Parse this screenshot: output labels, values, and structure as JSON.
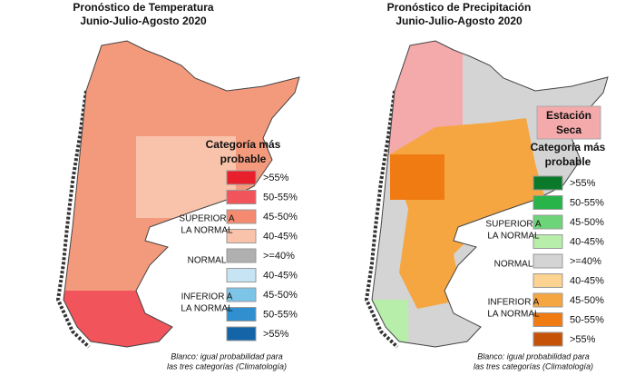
{
  "maps": [
    {
      "title": [
        "Pronóstico de Temperatura",
        "Junio-Julio-Agosto 2020"
      ],
      "legend_title": [
        "Categoría más",
        "probable"
      ],
      "groups": [
        {
          "lines": [
            "SUPERIOR A",
            "LA NORMAL"
          ]
        },
        {
          "lines": [
            "NORMAL"
          ]
        },
        {
          "lines": [
            "INFERIOR A",
            "LA NORMAL"
          ]
        }
      ],
      "legend": [
        {
          "label": ">55%",
          "color": "#e8202b"
        },
        {
          "label": "50-55%",
          "color": "#f2545c"
        },
        {
          "label": "45-50%",
          "color": "#f48a70"
        },
        {
          "label": "40-45%",
          "color": "#f9c2aa"
        },
        {
          "label": ">=40%",
          "color": "#b0b0b0"
        },
        {
          "label": "40-45%",
          "color": "#c6e4f4"
        },
        {
          "label": "45-50%",
          "color": "#7cc4e8"
        },
        {
          "label": "50-55%",
          "color": "#2f8fcf"
        },
        {
          "label": ">55%",
          "color": "#1464a8"
        }
      ],
      "footnote": [
        "Blanco: igual probabilidad para",
        "las tres categorías (Climatología)"
      ]
    },
    {
      "title": [
        "Pronóstico de Precipitación",
        "Junio-Julio-Agosto 2020"
      ],
      "badge": [
        "Estación",
        "Seca"
      ],
      "legend_title": [
        "Categoría más",
        "probable"
      ],
      "groups": [
        {
          "lines": [
            "SUPERIOR A",
            "LA NORMAL"
          ]
        },
        {
          "lines": [
            "NORMAL"
          ]
        },
        {
          "lines": [
            "INFERIOR A",
            "LA NORMAL"
          ]
        }
      ],
      "legend": [
        {
          "label": ">55%",
          "color": "#0a7a2a"
        },
        {
          "label": "50-55%",
          "color": "#29b44a"
        },
        {
          "label": "45-50%",
          "color": "#6ed47a"
        },
        {
          "label": "40-45%",
          "color": "#b6eeaa"
        },
        {
          "label": ">=40%",
          "color": "#d4d4d4"
        },
        {
          "label": "40-45%",
          "color": "#fcd390"
        },
        {
          "label": "45-50%",
          "color": "#f6a640"
        },
        {
          "label": "50-55%",
          "color": "#ef7b12"
        },
        {
          "label": ">55%",
          "color": "#c65208"
        }
      ],
      "footnote": [
        "Blanco: igual probabilidad para",
        "las tres categorías (Climatología)"
      ]
    }
  ]
}
